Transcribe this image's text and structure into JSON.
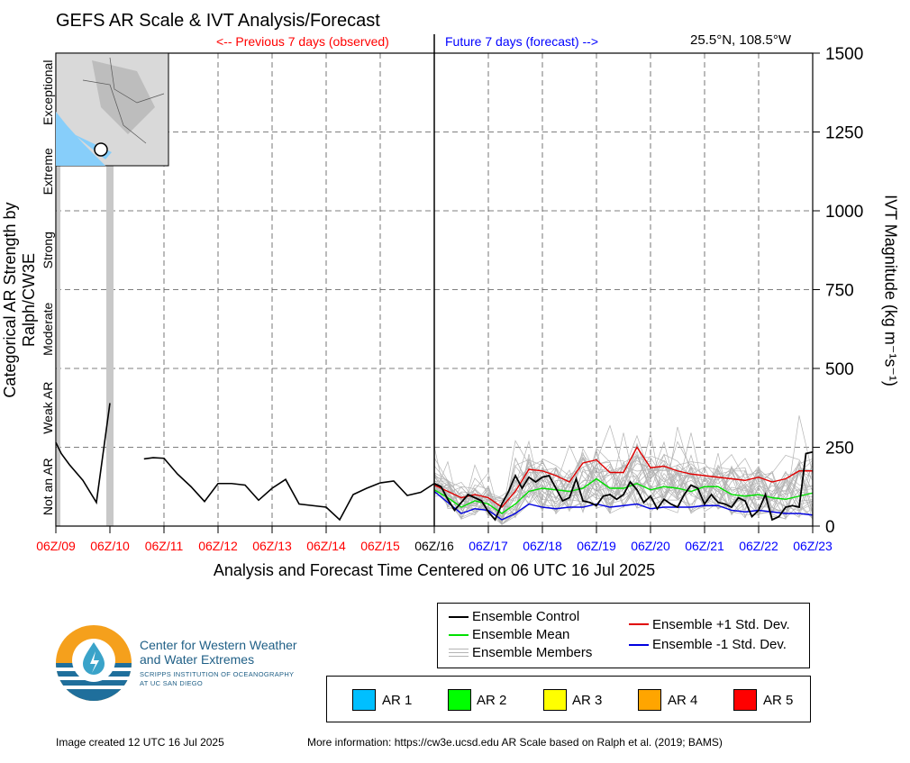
{
  "header": {
    "title": "GEFS AR Scale & IVT Analysis/Forecast",
    "prev_label": "<-- Previous 7 days (observed)",
    "future_label": "Future 7 days (forecast) -->",
    "location": "25.5°N, 108.5°W"
  },
  "axes": {
    "y_left_label": "Categorical AR Strength by Ralph/CW3E",
    "y_right_label": "IVT Magnitude (kg m⁻¹s⁻¹)",
    "x_label": "Analysis and Forecast Time Centered on 06 UTC 16 Jul 2025"
  },
  "chart_data": {
    "type": "line",
    "xlabel": "Analysis and Forecast Time Centered on 06 UTC 16 Jul 2025",
    "ylabel": "IVT Magnitude (kg m⁻¹s⁻¹)",
    "ylim": [
      0,
      1500
    ],
    "xlim": [
      0,
      14
    ],
    "grid": true,
    "y_ticks": [
      0,
      250,
      500,
      750,
      1000,
      1250,
      1500
    ],
    "x_ticks": [
      {
        "label": "06Z/09",
        "color": "#ff0000"
      },
      {
        "label": "06Z/10",
        "color": "#ff0000"
      },
      {
        "label": "06Z/11",
        "color": "#ff0000"
      },
      {
        "label": "06Z/12",
        "color": "#ff0000"
      },
      {
        "label": "06Z/13",
        "color": "#ff0000"
      },
      {
        "label": "06Z/14",
        "color": "#ff0000"
      },
      {
        "label": "06Z/15",
        "color": "#ff0000"
      },
      {
        "label": "06Z/16",
        "color": "#000000"
      },
      {
        "label": "06Z/17",
        "color": "#0000ff"
      },
      {
        "label": "06Z/18",
        "color": "#0000ff"
      },
      {
        "label": "06Z/19",
        "color": "#0000ff"
      },
      {
        "label": "06Z/20",
        "color": "#0000ff"
      },
      {
        "label": "06Z/21",
        "color": "#0000ff"
      },
      {
        "label": "06Z/22",
        "color": "#0000ff"
      },
      {
        "label": "06Z/23",
        "color": "#0000ff"
      }
    ],
    "ar_categories": [
      {
        "label": "Not an AR",
        "min": 0,
        "max": 250
      },
      {
        "label": "Weak AR",
        "min": 250,
        "max": 500
      },
      {
        "label": "Moderate",
        "min": 500,
        "max": 750
      },
      {
        "label": "Strong",
        "min": 750,
        "max": 1000
      },
      {
        "label": "Extreme",
        "min": 1000,
        "max": 1250
      },
      {
        "label": "Exceptional",
        "min": 1250,
        "max": 1500
      }
    ],
    "now_x": 7,
    "observed": {
      "name": "Ensemble Control",
      "color": "#000000",
      "segments": [
        [
          [
            0.0,
            265
          ],
          [
            0.1,
            230
          ],
          [
            0.25,
            195
          ],
          [
            0.5,
            145
          ],
          [
            0.75,
            75
          ],
          [
            1.0,
            390
          ]
        ],
        [
          [
            1.63,
            213
          ],
          [
            1.8,
            217
          ],
          [
            2.0,
            215
          ],
          [
            2.25,
            165
          ],
          [
            2.5,
            125
          ],
          [
            2.75,
            78
          ],
          [
            3.0,
            135
          ],
          [
            3.25,
            135
          ],
          [
            3.5,
            130
          ],
          [
            3.75,
            82
          ],
          [
            4.0,
            120
          ],
          [
            4.25,
            148
          ],
          [
            4.5,
            70
          ],
          [
            5.0,
            60
          ],
          [
            5.25,
            20
          ],
          [
            5.5,
            100
          ],
          [
            5.75,
            120
          ],
          [
            6.0,
            137
          ],
          [
            6.25,
            143
          ],
          [
            6.5,
            97
          ],
          [
            6.75,
            107
          ],
          [
            7.0,
            135
          ]
        ]
      ]
    },
    "bar_shading": [
      {
        "x": 1.0,
        "color": "#c8c8c8"
      }
    ],
    "dot_marker": [
      {
        "x": 0.05,
        "ymin": 0,
        "ymax": 1500,
        "color": "#c8c8c8"
      }
    ],
    "series": [
      {
        "name": "Ensemble Control",
        "color": "#000000",
        "x": [
          7.0,
          7.125,
          7.25,
          7.375,
          7.5,
          7.625,
          7.75,
          7.875,
          8.0,
          8.125,
          8.25,
          8.375,
          8.5,
          8.625,
          8.75,
          8.875,
          9.0,
          9.125,
          9.25,
          9.375,
          9.5,
          9.625,
          9.75,
          9.875,
          10.0,
          10.125,
          10.25,
          10.375,
          10.5,
          10.625,
          10.75,
          10.875,
          11.0,
          11.125,
          11.25,
          11.375,
          11.5,
          11.625,
          11.75,
          11.875,
          12.0,
          12.125,
          12.25,
          12.375,
          12.5,
          12.625,
          12.75,
          12.875,
          13.0,
          13.125,
          13.25,
          13.375,
          13.5,
          13.625,
          13.75,
          13.875,
          14.0
        ],
        "values": [
          135,
          125,
          85,
          50,
          75,
          100,
          90,
          80,
          45,
          20,
          70,
          110,
          160,
          120,
          155,
          140,
          155,
          160,
          120,
          80,
          90,
          150,
          80,
          75,
          65,
          95,
          100,
          85,
          100,
          140,
          115,
          75,
          95,
          55,
          85,
          70,
          60,
          100,
          130,
          120,
          70,
          100,
          75,
          70,
          60,
          90,
          80,
          30,
          50,
          100,
          20,
          30,
          60,
          65,
          60,
          230,
          235
        ]
      },
      {
        "name": "Ensemble Mean",
        "color": "#00e000",
        "x": [
          7.0,
          7.25,
          7.5,
          7.75,
          8.0,
          8.25,
          8.5,
          8.75,
          9.0,
          9.25,
          9.5,
          9.75,
          10.0,
          10.25,
          10.5,
          10.75,
          11.0,
          11.25,
          11.5,
          11.75,
          12.0,
          12.25,
          12.5,
          12.75,
          13.0,
          13.25,
          13.5,
          13.75,
          14.0
        ],
        "values": [
          115,
          90,
          60,
          80,
          70,
          40,
          70,
          110,
          120,
          115,
          110,
          120,
          150,
          120,
          120,
          135,
          115,
          125,
          120,
          110,
          125,
          125,
          100,
          95,
          100,
          90,
          85,
          95,
          105
        ]
      },
      {
        "name": "Ensemble +1 Std. Dev.",
        "color": "#e00000",
        "x": [
          7.0,
          7.25,
          7.5,
          7.75,
          8.0,
          8.25,
          8.5,
          8.75,
          9.0,
          9.25,
          9.5,
          9.75,
          10.0,
          10.25,
          10.5,
          10.75,
          11.0,
          11.25,
          11.5,
          11.75,
          12.0,
          12.25,
          12.5,
          12.75,
          13.0,
          13.25,
          13.5,
          13.75,
          14.0
        ],
        "values": [
          130,
          110,
          90,
          100,
          90,
          60,
          110,
          180,
          175,
          160,
          140,
          200,
          210,
          170,
          170,
          250,
          185,
          190,
          175,
          165,
          160,
          155,
          150,
          145,
          155,
          140,
          150,
          175,
          175
        ]
      },
      {
        "name": "Ensemble -1 Std. Dev.",
        "color": "#0000e0",
        "x": [
          7.0,
          7.25,
          7.5,
          7.75,
          8.0,
          8.25,
          8.5,
          8.75,
          9.0,
          9.25,
          9.5,
          9.75,
          10.0,
          10.25,
          10.5,
          10.75,
          11.0,
          11.25,
          11.5,
          11.75,
          12.0,
          12.25,
          12.5,
          12.75,
          13.0,
          13.25,
          13.5,
          13.75,
          14.0
        ],
        "values": [
          110,
          75,
          40,
          55,
          50,
          20,
          40,
          70,
          60,
          55,
          60,
          60,
          70,
          60,
          65,
          70,
          55,
          60,
          60,
          60,
          65,
          65,
          50,
          45,
          50,
          45,
          40,
          40,
          35
        ]
      }
    ],
    "members_band": {
      "name": "Ensemble Members",
      "color": "#b4b4b4"
    }
  },
  "legend": {
    "control": "Ensemble Control",
    "mean": "Ensemble Mean",
    "members": "Ensemble Members",
    "plus_std": "Ensemble +1 Std. Dev.",
    "minus_std": "Ensemble -1 Std. Dev.",
    "ar_swatches": [
      {
        "label": "AR 1",
        "color": "#00bfff"
      },
      {
        "label": "AR 2",
        "color": "#00ff00"
      },
      {
        "label": "AR 3",
        "color": "#ffff00"
      },
      {
        "label": "AR 4",
        "color": "#ffa500"
      },
      {
        "label": "AR 5",
        "color": "#ff0000"
      }
    ]
  },
  "logo": {
    "line1": "Center for Western Weather",
    "line2": "and Water Extremes",
    "line3": "SCRIPPS INSTITUTION OF OCEANOGRAPHY",
    "line4": "AT UC SAN DIEGO",
    "colors": {
      "orange": "#f5a01c",
      "blue": "#1f6f9c",
      "light_blue": "#3aa3c9"
    }
  },
  "footer": {
    "created": "Image created 12 UTC 16 Jul 2025",
    "info": "More information: https://cw3e.ucsd.edu AR Scale based on Ralph et al. (2019; BAMS)"
  }
}
